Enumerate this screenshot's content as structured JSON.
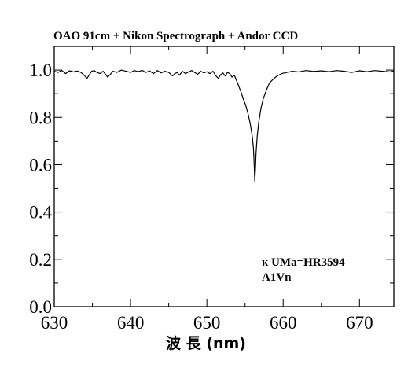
{
  "chart_data": {
    "type": "line",
    "title": "OAO 91cm + Nikon Spectrograph + Andor CCD",
    "xlabel": "波 長 (nm)",
    "ylabel": "",
    "xlim": [
      630,
      674.5
    ],
    "ylim": [
      0.0,
      1.1
    ],
    "x_ticks": [
      630,
      640,
      650,
      660,
      670
    ],
    "x_tick_labels": [
      "630",
      "640",
      "650",
      "660",
      "670"
    ],
    "y_ticks": [
      0.0,
      0.2,
      0.4,
      0.6,
      0.8,
      1.0
    ],
    "y_tick_labels": [
      "0.0",
      "0.2",
      "0.4",
      "0.6",
      "0.8",
      "1.0"
    ],
    "grid": false,
    "annotations": [
      "κ UMa=HR3594",
      "A1Vn"
    ],
    "series": [
      {
        "color": "#000000",
        "x": [
          630.0,
          630.5,
          631.0,
          631.5,
          632.0,
          632.5,
          633.0,
          633.5,
          634.0,
          634.3,
          634.6,
          634.9,
          635.2,
          635.6,
          636.0,
          636.4,
          636.7,
          637.0,
          637.3,
          637.7,
          638.2,
          638.8,
          639.4,
          640.0,
          640.5,
          641.0,
          641.5,
          642.0,
          642.5,
          643.0,
          643.5,
          644.0,
          644.5,
          645.0,
          645.5,
          645.8,
          646.1,
          646.4,
          646.8,
          647.2,
          647.6,
          648.0,
          648.4,
          648.8,
          649.2,
          649.6,
          650.0,
          650.4,
          650.8,
          651.2,
          651.5,
          651.8,
          652.1,
          652.4,
          652.7,
          653.0,
          653.3,
          653.6,
          653.9,
          654.2,
          654.5,
          654.8,
          655.1,
          655.4,
          655.7,
          655.95,
          656.1,
          656.2,
          656.28,
          656.36,
          656.45,
          656.6,
          656.8,
          657.1,
          657.4,
          657.8,
          658.2,
          658.7,
          659.2,
          659.8,
          660.5,
          661.2,
          662.0,
          663.0,
          664.0,
          665.0,
          666.0,
          667.0,
          668.0,
          669.0,
          670.0,
          671.0,
          672.0,
          673.0,
          674.0,
          674.5
        ],
        "y": [
          0.995,
          0.99,
          0.998,
          0.985,
          0.997,
          0.992,
          0.996,
          0.99,
          0.975,
          0.965,
          0.98,
          0.995,
          0.998,
          0.99,
          0.985,
          0.995,
          0.983,
          0.97,
          0.98,
          0.995,
          0.99,
          1.0,
          0.995,
          0.99,
          0.998,
          0.993,
          0.999,
          0.99,
          0.996,
          0.985,
          0.998,
          0.988,
          0.995,
          0.99,
          0.975,
          0.985,
          0.99,
          0.978,
          0.995,
          0.985,
          0.992,
          0.998,
          0.99,
          0.982,
          0.995,
          0.988,
          0.993,
          0.985,
          0.995,
          0.975,
          0.965,
          0.98,
          0.988,
          0.975,
          0.99,
          0.985,
          0.97,
          0.978,
          0.955,
          0.93,
          0.905,
          0.875,
          0.85,
          0.815,
          0.77,
          0.72,
          0.67,
          0.6,
          0.53,
          0.58,
          0.65,
          0.72,
          0.78,
          0.84,
          0.88,
          0.915,
          0.945,
          0.962,
          0.975,
          0.985,
          0.99,
          0.995,
          0.992,
          0.998,
          0.994,
          0.997,
          0.993,
          0.998,
          0.995,
          0.99,
          0.997,
          0.993,
          0.998,
          0.995,
          0.992,
          0.996
        ]
      }
    ]
  }
}
